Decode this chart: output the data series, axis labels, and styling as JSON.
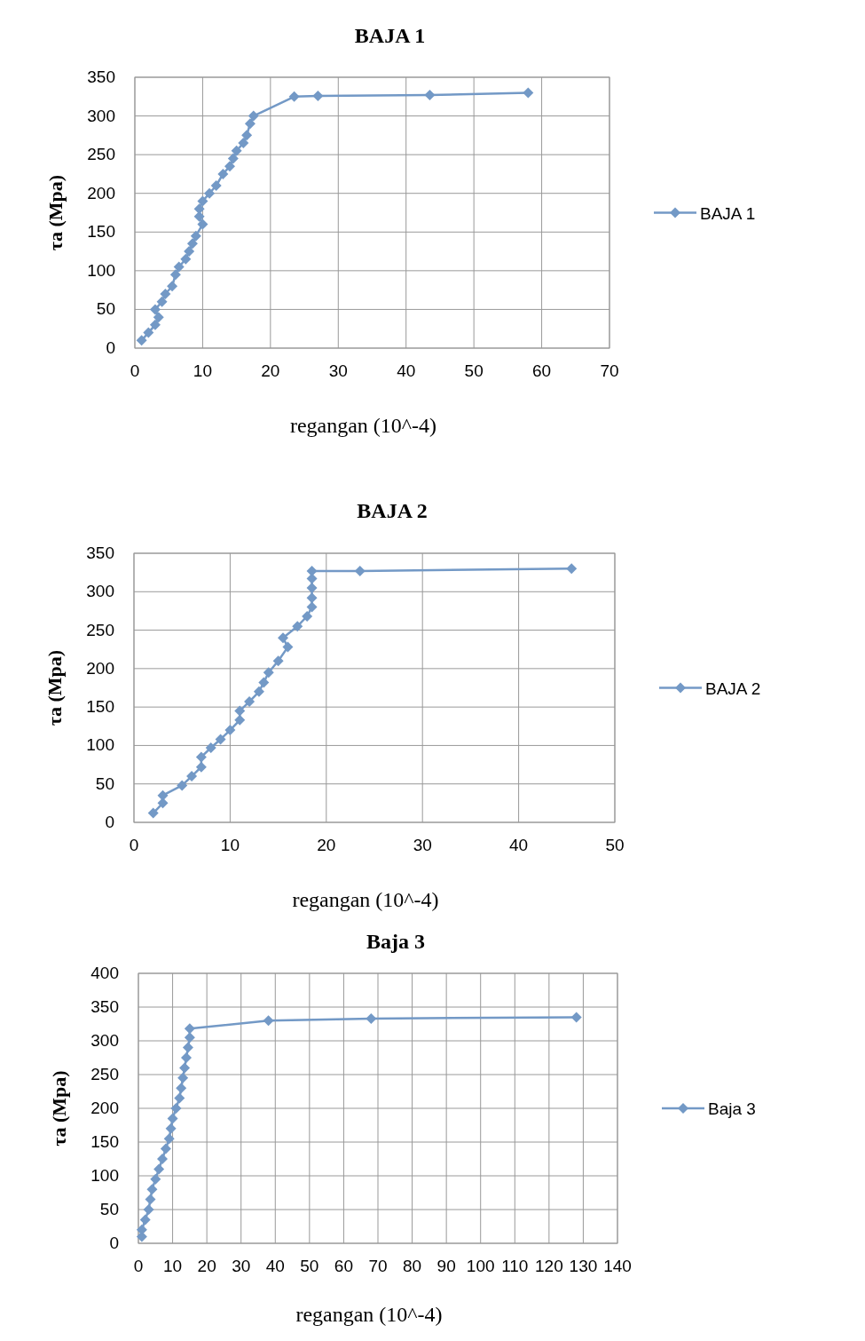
{
  "chart_data": [
    {
      "type": "line",
      "title": "BAJA 1",
      "xlabel": "regangan (10^-4)",
      "ylabel": "τa (Mpa)",
      "xlim": [
        0,
        70
      ],
      "xticks": [
        0,
        10,
        20,
        30,
        40,
        50,
        60,
        70
      ],
      "ylim": [
        0,
        350
      ],
      "yticks": [
        0,
        50,
        100,
        150,
        200,
        250,
        300,
        350
      ],
      "grid": true,
      "legend": "right",
      "marker": "diamond",
      "series": [
        {
          "name": "BAJA 1",
          "color": "#7399c6",
          "x": [
            1,
            2,
            3,
            3.5,
            3,
            4,
            4.5,
            5.5,
            6,
            6.5,
            7.5,
            8,
            8.5,
            9,
            10,
            9.5,
            9.5,
            10,
            11,
            12,
            13,
            14,
            14.5,
            15,
            16,
            16.5,
            17,
            17.5,
            23.5,
            27,
            43.5,
            58
          ],
          "values": [
            10,
            20,
            30,
            40,
            50,
            60,
            70,
            80,
            95,
            105,
            115,
            125,
            135,
            145,
            160,
            170,
            180,
            190,
            200,
            210,
            225,
            235,
            245,
            255,
            265,
            275,
            290,
            300,
            325,
            326,
            327,
            330
          ]
        }
      ]
    },
    {
      "type": "line",
      "title": "BAJA 2",
      "xlabel": "regangan (10^-4)",
      "ylabel": "τa (Mpa)",
      "xlim": [
        0,
        50
      ],
      "xticks": [
        0,
        10,
        20,
        30,
        40,
        50
      ],
      "ylim": [
        0,
        350
      ],
      "yticks": [
        0,
        50,
        100,
        150,
        200,
        250,
        300,
        350
      ],
      "grid": true,
      "legend": "right",
      "marker": "diamond",
      "series": [
        {
          "name": "BAJA 2",
          "color": "#7399c6",
          "x": [
            2,
            3,
            3,
            5,
            6,
            7,
            7,
            8,
            9,
            10,
            11,
            11,
            12,
            13,
            13.5,
            14,
            15,
            16,
            15.5,
            17,
            18,
            18.5,
            18.5,
            18.5,
            18.5,
            18.5,
            23.5,
            45.5
          ],
          "values": [
            12,
            25,
            35,
            48,
            60,
            72,
            85,
            97,
            108,
            120,
            133,
            145,
            157,
            170,
            182,
            195,
            210,
            228,
            240,
            255,
            268,
            280,
            292,
            305,
            317,
            327,
            327,
            330
          ]
        }
      ]
    },
    {
      "type": "line",
      "title": "Baja 3",
      "xlabel": "regangan (10^-4)",
      "ylabel": "τa (Mpa)",
      "xlim": [
        0,
        140
      ],
      "xticks": [
        0,
        10,
        20,
        30,
        40,
        50,
        60,
        70,
        80,
        90,
        100,
        110,
        120,
        130,
        140
      ],
      "ylim": [
        0,
        400
      ],
      "yticks": [
        0,
        50,
        100,
        150,
        200,
        250,
        300,
        350,
        400
      ],
      "grid": true,
      "legend": "right",
      "marker": "diamond",
      "series": [
        {
          "name": "Baja 3",
          "color": "#7399c6",
          "x": [
            1,
            1,
            2,
            3,
            3.5,
            4,
            5,
            6,
            7,
            8,
            9,
            9.5,
            10,
            11,
            12,
            12.5,
            13,
            13.5,
            14,
            14.5,
            15,
            15,
            38,
            68,
            128
          ],
          "values": [
            10,
            20,
            35,
            50,
            65,
            80,
            95,
            110,
            125,
            140,
            155,
            170,
            185,
            200,
            215,
            230,
            245,
            260,
            275,
            290,
            305,
            318,
            330,
            333,
            335
          ]
        }
      ]
    }
  ]
}
